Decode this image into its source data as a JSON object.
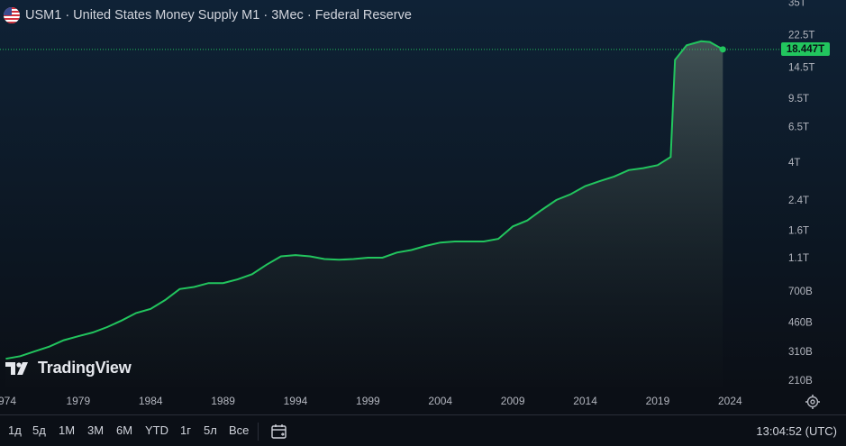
{
  "header": {
    "symbol_title": "USM1 · United States Money Supply M1 · 3Мес · Federal Reserve"
  },
  "watermark": {
    "text": "TradingView"
  },
  "price_scale": {
    "labels": [
      "35T",
      "22.5T",
      "14.5T",
      "9.5T",
      "6.5T",
      "4T",
      "2.4T",
      "1.6T",
      "1.1T",
      "700B",
      "460B",
      "310B",
      "210B"
    ],
    "current_price": "18.447T"
  },
  "time_axis": {
    "labels": [
      "974",
      "1979",
      "1984",
      "1989",
      "1994",
      "1999",
      "2004",
      "2009",
      "2014",
      "2019",
      "2024"
    ]
  },
  "toolbar": {
    "timeframes": [
      "1д",
      "5д",
      "1М",
      "3М",
      "6М",
      "YTD",
      "1г",
      "5л",
      "Все"
    ],
    "clock": "13:04:52 (UTC)"
  },
  "colors": {
    "line": "#22c55e",
    "badge": "#22c55e"
  },
  "chart_data": {
    "type": "area",
    "series": [
      {
        "values_note": "",
        "x": [
          1974.0,
          1975,
          1976,
          1977,
          1978,
          1979,
          1980,
          1981,
          1982,
          1983,
          1984,
          1985,
          1986,
          1987,
          1988,
          1989,
          1990,
          1991,
          1992,
          1993,
          1994,
          1995,
          1996,
          1997,
          1998,
          1999,
          2000,
          2001,
          2002,
          2003,
          2004,
          2005,
          2006,
          2007,
          2008,
          2009,
          2010,
          2011,
          2012,
          2013,
          2014,
          2015,
          2016,
          2017,
          2018,
          2019,
          2019.9,
          2020.2,
          2021,
          2022,
          2022.6,
          2023.5
        ],
        "y": [
          0.28,
          0.29,
          0.31,
          0.33,
          0.36,
          0.38,
          0.4,
          0.43,
          0.47,
          0.52,
          0.55,
          0.62,
          0.72,
          0.74,
          0.78,
          0.78,
          0.82,
          0.88,
          1.0,
          1.12,
          1.14,
          1.12,
          1.08,
          1.07,
          1.08,
          1.1,
          1.1,
          1.18,
          1.22,
          1.29,
          1.35,
          1.37,
          1.37,
          1.37,
          1.42,
          1.68,
          1.82,
          2.1,
          2.4,
          2.6,
          2.9,
          3.1,
          3.3,
          3.6,
          3.7,
          3.85,
          4.3,
          16.0,
          19.5,
          20.6,
          20.4,
          18.447
        ]
      }
    ],
    "y_scale": "log",
    "ylim": [
      190000000000,
      36000000000000
    ],
    "xlim": [
      1973.6,
      2027.4
    ]
  }
}
